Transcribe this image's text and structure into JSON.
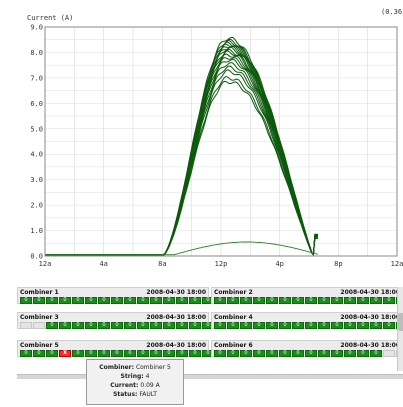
{
  "chart": {
    "y_title": "Current (A)",
    "corner_label": "(0.36"
  },
  "chart_data": {
    "type": "line",
    "xlabel": "",
    "ylabel": "Current (A)",
    "x_ticks": [
      "12a",
      "4a",
      "8a",
      "12p",
      "4p",
      "8p",
      "12a"
    ],
    "y_ticks": [
      "0.0",
      "1.0",
      "2.0",
      "3.0",
      "4.0",
      "5.0",
      "6.0",
      "7.0",
      "8.0",
      "9.0"
    ],
    "ylim": [
      0,
      9
    ],
    "xlim_hours": [
      0,
      24
    ],
    "grid": true,
    "peaks_A": [
      8.55,
      8.45,
      8.4,
      8.35,
      8.3,
      8.25,
      8.2,
      8.15,
      8.05,
      8.0,
      7.9,
      7.8,
      7.7,
      7.55,
      7.4,
      7.25,
      7.0,
      6.85,
      0.55
    ],
    "notes": "Multiple green string current curves; daylight from ~8a to ~6p, peak near 12p; one low curve (~0.55 A) for faulted string."
  },
  "combiners": [
    {
      "name": "Combiner 1",
      "timestamp": "2008-04-30 18:00",
      "cells": [
        "0",
        "0",
        "0",
        "0",
        "0",
        "0",
        "0",
        "0",
        "0",
        "0",
        "0",
        "0",
        "0",
        "0",
        "0"
      ]
    },
    {
      "name": "Combiner 2",
      "timestamp": "2008-04-30 18:00",
      "cells": [
        "0",
        "0",
        "0",
        "0",
        "0",
        "0",
        "0",
        "0",
        "0",
        "0",
        "0",
        "0",
        "0",
        "0",
        "0"
      ]
    },
    {
      "name": "Combiner 3",
      "timestamp": "2008-04-30 18:00",
      "cells": [
        "",
        "",
        "0",
        "0",
        "0",
        "0",
        "0",
        "0",
        "0",
        "0",
        "0",
        "0",
        "0",
        "0",
        "0"
      ]
    },
    {
      "name": "Combiner 4",
      "timestamp": "2008-04-30 18:00",
      "cells": [
        "0",
        "0",
        "0",
        "0",
        "0",
        "0",
        "0",
        "0",
        "0",
        "0",
        "0",
        "0",
        "0",
        "0",
        "0"
      ]
    },
    {
      "name": "Combiner 5",
      "timestamp": "2008-04-30 18:00",
      "cells": [
        "0",
        "0",
        "0",
        "X",
        "0",
        "0",
        "0",
        "0",
        "0",
        "0",
        "0",
        "0",
        "0",
        "0",
        "0"
      ]
    },
    {
      "name": "Combiner 6",
      "timestamp": "2008-04-30 18:00",
      "cells": [
        "0",
        "0",
        "0",
        "0",
        "0",
        "0",
        "0",
        "0",
        "0",
        "0",
        "0",
        "0",
        "0",
        "",
        ""
      ]
    }
  ],
  "tooltip": {
    "combiner_label": "Combiner:",
    "combiner_value": "Combiner 5",
    "string_label": "String:",
    "string_value": "4",
    "current_label": "Current:",
    "current_value": "0.09 A",
    "status_label": "Status:",
    "status_value": "FAULT"
  }
}
